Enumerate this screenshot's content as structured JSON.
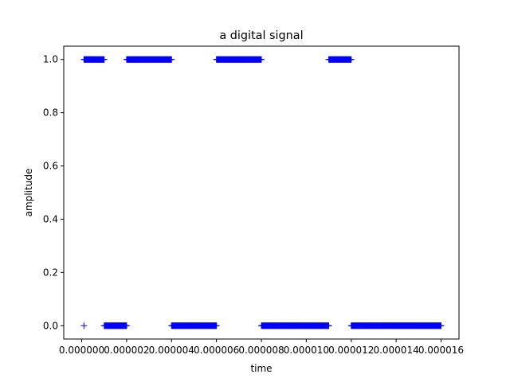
{
  "chart_data": {
    "type": "scatter",
    "title": "a digital signal",
    "xlabel": "time",
    "ylabel": "amplitude",
    "xlim": [
      -8e-07,
      1.68e-05
    ],
    "ylim": [
      -0.05,
      1.05
    ],
    "x_ticks": [
      0,
      2e-06,
      4e-06,
      6e-06,
      8e-06,
      1e-05,
      1.2e-05,
      1.4e-05,
      1.6e-05
    ],
    "x_tick_labels": [
      "0.000000",
      "0.000002",
      "0.000004",
      "0.000006",
      "0.000008",
      "0.000010",
      "0.000012",
      "0.000014",
      "0.000016"
    ],
    "y_ticks": [
      0.0,
      0.2,
      0.4,
      0.6,
      0.8,
      1.0
    ],
    "y_tick_labels": [
      "0.0",
      "0.2",
      "0.4",
      "0.6",
      "0.8",
      "1.0"
    ],
    "grid": false,
    "legend": "none",
    "marker": "+",
    "color": "#0000ff",
    "sample_step": 2e-08,
    "segments": [
      {
        "x_start": 1e-07,
        "x_end": 1e-07,
        "value": 0
      },
      {
        "x_start": 1e-07,
        "x_end": 1e-06,
        "value": 1
      },
      {
        "x_start": 1e-06,
        "x_end": 2e-06,
        "value": 0
      },
      {
        "x_start": 2e-06,
        "x_end": 4e-06,
        "value": 1
      },
      {
        "x_start": 4e-06,
        "x_end": 6e-06,
        "value": 0
      },
      {
        "x_start": 6e-06,
        "x_end": 8e-06,
        "value": 1
      },
      {
        "x_start": 8e-06,
        "x_end": 1.1e-05,
        "value": 0
      },
      {
        "x_start": 1.1e-05,
        "x_end": 1.2e-05,
        "value": 1
      },
      {
        "x_start": 1.2e-05,
        "x_end": 1.6e-05,
        "value": 0
      }
    ]
  }
}
